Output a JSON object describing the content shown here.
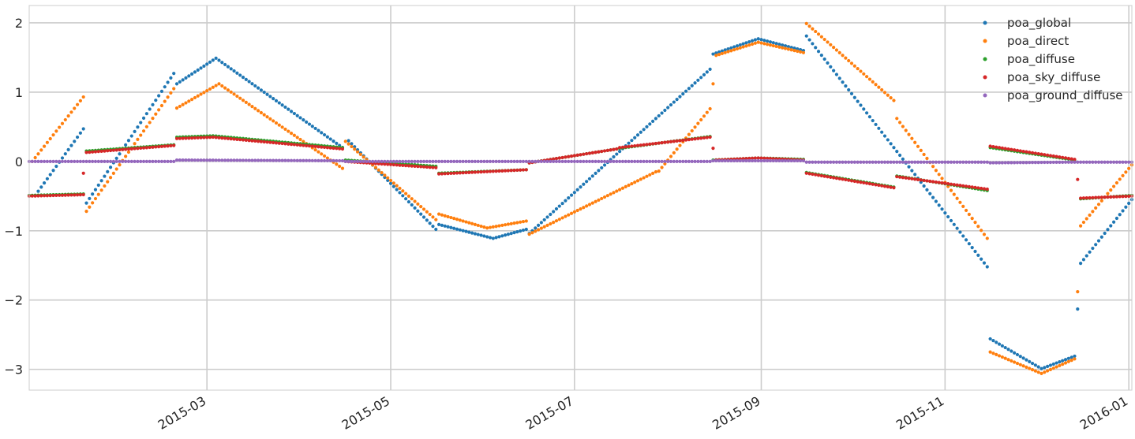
{
  "chart_data": {
    "type": "scatter",
    "title": "",
    "xlabel": "",
    "ylabel": "",
    "x_axis": "date",
    "xlim": [
      "2015-01-01",
      "2016-01-02"
    ],
    "ylim": [
      -3.3,
      2.25
    ],
    "grid": true,
    "legend_position": "top-right",
    "x_ticks": [
      {
        "date": "2015-03-01",
        "label": "2015-03"
      },
      {
        "date": "2015-05-01",
        "label": "2015-05"
      },
      {
        "date": "2015-07-01",
        "label": "2015-07"
      },
      {
        "date": "2015-09-01",
        "label": "2015-09"
      },
      {
        "date": "2015-11-01",
        "label": "2015-11"
      },
      {
        "date": "2016-01-01",
        "label": "2016-01"
      }
    ],
    "y_ticks": [
      {
        "value": 2,
        "label": "2"
      },
      {
        "value": 1,
        "label": "1"
      },
      {
        "value": 0,
        "label": "0"
      },
      {
        "value": -1,
        "label": "−1"
      },
      {
        "value": -2,
        "label": "−2"
      },
      {
        "value": -3,
        "label": "−3"
      }
    ],
    "series": [
      {
        "name": "poa_global",
        "color": "#1f77b4",
        "segments": [
          [
            [
              "2015-01-04",
              -0.43
            ],
            [
              "2015-01-19",
              0.47
            ]
          ],
          [
            [
              "2015-01-20",
              -0.6
            ],
            [
              "2015-02-18",
              1.27
            ]
          ],
          [
            [
              "2015-02-19",
              1.12
            ],
            [
              "2015-03-04",
              1.49
            ],
            [
              "2015-04-15",
              0.2
            ]
          ],
          [
            [
              "2015-04-17",
              0.3
            ],
            [
              "2015-05-16",
              -0.98
            ]
          ],
          [
            [
              "2015-05-17",
              -0.91
            ],
            [
              "2015-06-04",
              -1.11
            ],
            [
              "2015-06-15",
              -0.98
            ]
          ],
          [
            [
              "2015-06-16",
              -1.04
            ],
            [
              "2015-08-15",
              1.33
            ]
          ],
          [
            [
              "2015-08-16",
              1.55
            ],
            [
              "2015-08-31",
              1.77
            ],
            [
              "2015-09-15",
              1.6
            ]
          ],
          [
            [
              "2015-09-16",
              1.81
            ],
            [
              "2015-11-15",
              -1.52
            ]
          ],
          [
            [
              "2015-11-16",
              -2.56
            ],
            [
              "2015-12-03",
              -2.99
            ],
            [
              "2015-12-14",
              -2.81
            ]
          ],
          [
            [
              "2015-12-15",
              -2.13
            ]
          ],
          [
            [
              "2015-12-16",
              -1.47
            ],
            [
              "2016-01-02",
              -0.55
            ]
          ]
        ]
      },
      {
        "name": "poa_direct",
        "color": "#ff7f0e",
        "segments": [
          [
            [
              "2015-01-02",
              0.0
            ],
            [
              "2015-01-19",
              0.93
            ]
          ],
          [
            [
              "2015-01-20",
              -0.72
            ],
            [
              "2015-02-18",
              1.05
            ]
          ],
          [
            [
              "2015-02-19",
              0.77
            ],
            [
              "2015-03-05",
              1.12
            ],
            [
              "2015-04-15",
              -0.1
            ]
          ],
          [
            [
              "2015-04-16",
              0.29
            ],
            [
              "2015-05-16",
              -0.84
            ]
          ],
          [
            [
              "2015-05-17",
              -0.76
            ],
            [
              "2015-06-02",
              -0.96
            ],
            [
              "2015-06-15",
              -0.86
            ]
          ],
          [
            [
              "2015-06-16",
              -1.05
            ],
            [
              "2015-07-28",
              -0.15
            ]
          ],
          [
            [
              "2015-07-29",
              -0.14
            ],
            [
              "2015-08-15",
              0.76
            ]
          ],
          [
            [
              "2015-08-16",
              1.12
            ]
          ],
          [
            [
              "2015-08-17",
              1.53
            ],
            [
              "2015-08-31",
              1.72
            ],
            [
              "2015-09-15",
              1.57
            ]
          ],
          [
            [
              "2015-09-16",
              1.99
            ],
            [
              "2015-10-15",
              0.88
            ]
          ],
          [
            [
              "2015-10-16",
              0.62
            ],
            [
              "2015-11-15",
              -1.11
            ]
          ],
          [
            [
              "2015-11-16",
              -2.75
            ],
            [
              "2015-12-03",
              -3.06
            ],
            [
              "2015-12-14",
              -2.85
            ]
          ],
          [
            [
              "2015-12-15",
              -1.88
            ]
          ],
          [
            [
              "2015-12-16",
              -0.93
            ],
            [
              "2016-01-02",
              -0.05
            ]
          ]
        ]
      },
      {
        "name": "poa_diffuse",
        "color": "#2ca02c",
        "segments": [
          [
            [
              "2015-01-01",
              -0.49
            ],
            [
              "2015-01-19",
              -0.47
            ]
          ],
          [
            [
              "2015-01-20",
              0.15
            ],
            [
              "2015-02-18",
              0.24
            ]
          ],
          [
            [
              "2015-02-19",
              0.35
            ],
            [
              "2015-03-03",
              0.37
            ],
            [
              "2015-04-15",
              0.2
            ]
          ],
          [
            [
              "2015-04-16",
              0.02
            ],
            [
              "2015-05-16",
              -0.07
            ]
          ],
          [
            [
              "2015-05-17",
              -0.17
            ],
            [
              "2015-06-15",
              -0.12
            ]
          ],
          [
            [
              "2015-06-16",
              -0.02
            ],
            [
              "2015-07-15",
              0.18
            ]
          ],
          [
            [
              "2015-07-16",
              0.19
            ],
            [
              "2015-08-15",
              0.36
            ]
          ],
          [
            [
              "2015-08-16",
              0.02
            ],
            [
              "2015-08-31",
              0.05
            ],
            [
              "2015-09-15",
              0.03
            ]
          ],
          [
            [
              "2015-09-16",
              -0.16
            ],
            [
              "2015-10-15",
              -0.37
            ]
          ],
          [
            [
              "2015-10-16",
              -0.21
            ],
            [
              "2015-11-15",
              -0.42
            ]
          ],
          [
            [
              "2015-11-16",
              0.2
            ],
            [
              "2015-12-14",
              0.02
            ]
          ],
          [
            [
              "2015-12-16",
              -0.54
            ],
            [
              "2016-01-02",
              -0.49
            ]
          ]
        ]
      },
      {
        "name": "poa_sky_diffuse",
        "color": "#d62728",
        "segments": [
          [
            [
              "2015-01-01",
              -0.5
            ],
            [
              "2015-01-19",
              -0.48
            ]
          ],
          [
            [
              "2015-01-19",
              -0.17
            ]
          ],
          [
            [
              "2015-01-20",
              0.13
            ],
            [
              "2015-02-18",
              0.23
            ]
          ],
          [
            [
              "2015-02-19",
              0.33
            ],
            [
              "2015-03-03",
              0.35
            ],
            [
              "2015-04-15",
              0.18
            ]
          ],
          [
            [
              "2015-04-16",
              0.0
            ],
            [
              "2015-05-16",
              -0.09
            ]
          ],
          [
            [
              "2015-05-17",
              -0.18
            ],
            [
              "2015-06-15",
              -0.12
            ]
          ],
          [
            [
              "2015-06-16",
              -0.02
            ],
            [
              "2015-07-15",
              0.18
            ]
          ],
          [
            [
              "2015-07-16",
              0.2
            ],
            [
              "2015-08-15",
              0.35
            ]
          ],
          [
            [
              "2015-08-16",
              0.19
            ]
          ],
          [
            [
              "2015-08-17",
              0.02
            ],
            [
              "2015-08-31",
              0.05
            ],
            [
              "2015-09-15",
              0.02
            ]
          ],
          [
            [
              "2015-09-16",
              -0.17
            ],
            [
              "2015-10-15",
              -0.38
            ]
          ],
          [
            [
              "2015-10-16",
              -0.22
            ],
            [
              "2015-11-15",
              -0.4
            ]
          ],
          [
            [
              "2015-11-16",
              0.22
            ],
            [
              "2015-12-14",
              0.03
            ]
          ],
          [
            [
              "2015-12-15",
              -0.26
            ]
          ],
          [
            [
              "2015-12-16",
              -0.53
            ],
            [
              "2016-01-02",
              -0.5
            ]
          ]
        ]
      },
      {
        "name": "poa_ground_diffuse",
        "color": "#9467bd",
        "segments": [
          [
            [
              "2015-01-01",
              0.0
            ],
            [
              "2015-02-18",
              0.0
            ]
          ],
          [
            [
              "2015-02-19",
              0.02
            ],
            [
              "2015-04-15",
              0.01
            ]
          ],
          [
            [
              "2015-04-16",
              0.0
            ],
            [
              "2015-08-15",
              0.0
            ]
          ],
          [
            [
              "2015-08-16",
              0.01
            ],
            [
              "2015-09-15",
              0.01
            ]
          ],
          [
            [
              "2015-09-16",
              -0.01
            ],
            [
              "2015-11-15",
              -0.01
            ]
          ],
          [
            [
              "2015-11-16",
              -0.02
            ],
            [
              "2015-12-14",
              -0.01
            ]
          ],
          [
            [
              "2015-12-15",
              -0.01
            ],
            [
              "2016-01-02",
              -0.01
            ]
          ]
        ]
      }
    ]
  }
}
